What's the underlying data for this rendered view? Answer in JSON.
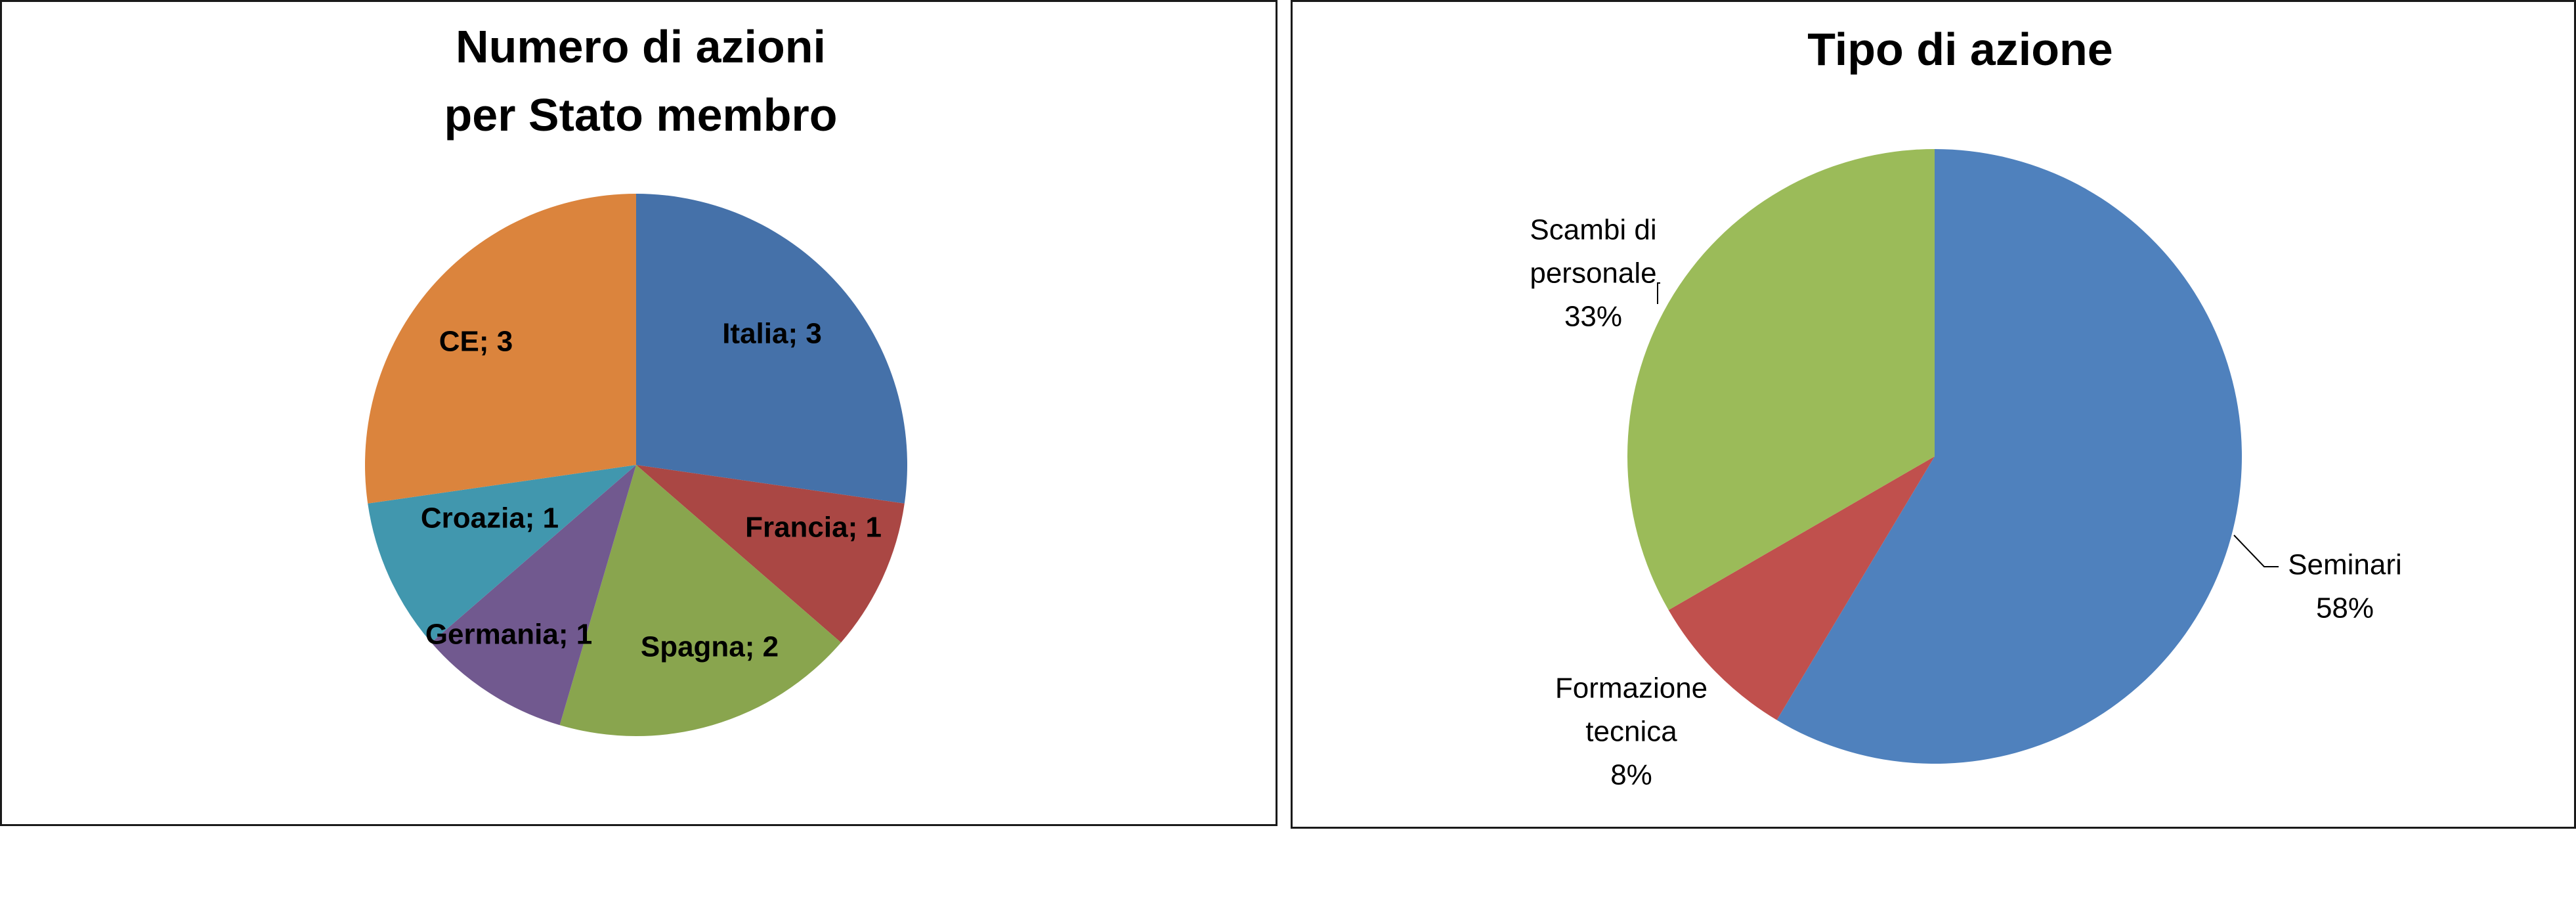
{
  "chart_data": [
    {
      "type": "pie",
      "title_lines": [
        "Numero di azioni",
        "per Stato membro"
      ],
      "categories": [
        "Italia",
        "Francia",
        "Spagna",
        "Germania",
        "Croazia",
        "CE"
      ],
      "values": [
        3,
        1,
        2,
        1,
        1,
        3
      ],
      "labels": [
        "Italia; 3",
        "Francia; 1",
        "Spagna; 2",
        "Germania; 1",
        "Croazia; 1",
        "CE; 3"
      ],
      "colors": [
        "#4571a9",
        "#aa4744",
        "#89a54e",
        "#71598f",
        "#4197ae",
        "#db843d"
      ],
      "start_angle_deg": 0,
      "direction": "clockwise",
      "legend": "none"
    },
    {
      "type": "pie",
      "title": "Tipo di azione",
      "categories": [
        "Seminari",
        "Formazione tecnica",
        "Scambi di personale"
      ],
      "values": [
        58,
        8,
        33
      ],
      "label_lines": [
        [
          "Seminari",
          "58%"
        ],
        [
          "Formazione",
          "tecnica",
          "8%"
        ],
        [
          "Scambi di",
          "personale",
          "33%"
        ]
      ],
      "colors": [
        "#4f81bd",
        "#c0504d",
        "#9bbb59"
      ],
      "start_angle_deg": 0,
      "direction": "clockwise",
      "legend": "none"
    }
  ]
}
